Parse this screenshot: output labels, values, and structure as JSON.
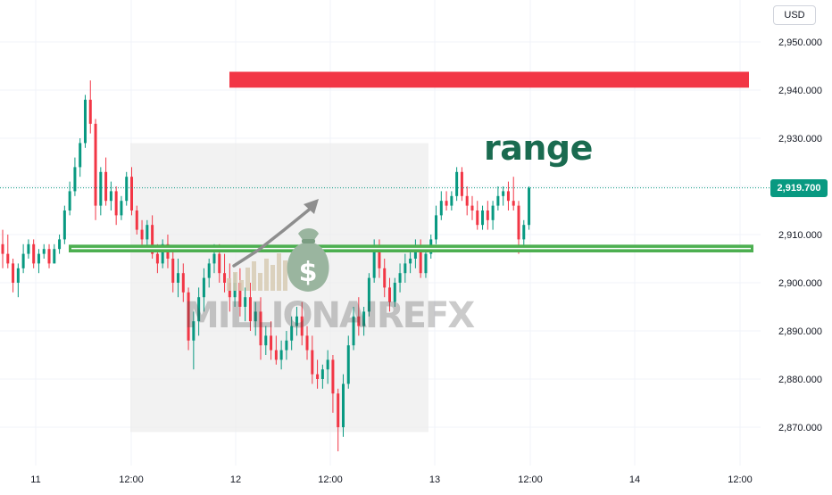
{
  "currency": "USD",
  "current_price_label": "2,919.700",
  "annotation": "range",
  "watermark": "MILLIONAIREFX",
  "colors": {
    "up": "#089981",
    "down": "#f23645",
    "resistance": "#f23645",
    "support": "#4caf50",
    "annotation": "#1a6b50",
    "grid": "#f0f3fa",
    "box": "#ebebeb"
  },
  "icons": [
    "money-bag-icon",
    "trend-arrow-icon"
  ],
  "chart_data": {
    "type": "candlestick",
    "y_ticks": [
      "2,950.000",
      "2,940.000",
      "2,930.000",
      "2,920.000",
      "2,910.000",
      "2,900.000",
      "2,890.000",
      "2,880.000",
      "2,870.000"
    ],
    "x_ticks": [
      "11",
      "12:00",
      "12",
      "12:00",
      "13",
      "12:00",
      "14",
      "12:00"
    ],
    "ylim": [
      2864,
      2954
    ],
    "zones": {
      "resistance_band": [
        2940.5,
        2943.8
      ],
      "support_band": [
        2906.3,
        2907.9
      ],
      "range_box": {
        "price": [
          2869,
          2929
        ],
        "x": [
          "11 09:30",
          "13 00:00"
        ]
      }
    },
    "candles": [
      {
        "o": 2908,
        "h": 2911,
        "l": 2903,
        "c": 2906
      },
      {
        "o": 2906,
        "h": 2910,
        "l": 2903,
        "c": 2904
      },
      {
        "o": 2904,
        "h": 2905,
        "l": 2898,
        "c": 2900
      },
      {
        "o": 2900,
        "h": 2904,
        "l": 2897,
        "c": 2903
      },
      {
        "o": 2903,
        "h": 2908,
        "l": 2902,
        "c": 2906
      },
      {
        "o": 2906,
        "h": 2909,
        "l": 2905,
        "c": 2908
      },
      {
        "o": 2908,
        "h": 2909,
        "l": 2903,
        "c": 2904
      },
      {
        "o": 2904,
        "h": 2907,
        "l": 2902,
        "c": 2906
      },
      {
        "o": 2906,
        "h": 2908,
        "l": 2905,
        "c": 2907
      },
      {
        "o": 2907,
        "h": 2908,
        "l": 2903,
        "c": 2904
      },
      {
        "o": 2904,
        "h": 2908,
        "l": 2904,
        "c": 2907
      },
      {
        "o": 2907,
        "h": 2910,
        "l": 2906,
        "c": 2909
      },
      {
        "o": 2909,
        "h": 2916,
        "l": 2908,
        "c": 2915
      },
      {
        "o": 2915,
        "h": 2921,
        "l": 2914,
        "c": 2919
      },
      {
        "o": 2919,
        "h": 2926,
        "l": 2918,
        "c": 2924
      },
      {
        "o": 2924,
        "h": 2930,
        "l": 2922,
        "c": 2929
      },
      {
        "o": 2929,
        "h": 2939,
        "l": 2928,
        "c": 2938
      },
      {
        "o": 2938,
        "h": 2942,
        "l": 2931,
        "c": 2933
      },
      {
        "o": 2933,
        "h": 2934,
        "l": 2913,
        "c": 2916
      },
      {
        "o": 2916,
        "h": 2924,
        "l": 2914,
        "c": 2923
      },
      {
        "o": 2923,
        "h": 2926,
        "l": 2916,
        "c": 2917
      },
      {
        "o": 2917,
        "h": 2921,
        "l": 2915,
        "c": 2919
      },
      {
        "o": 2919,
        "h": 2920,
        "l": 2912,
        "c": 2914
      },
      {
        "o": 2914,
        "h": 2918,
        "l": 2913,
        "c": 2917
      },
      {
        "o": 2917,
        "h": 2923,
        "l": 2916,
        "c": 2922
      },
      {
        "o": 2922,
        "h": 2924,
        "l": 2914,
        "c": 2915
      },
      {
        "o": 2915,
        "h": 2916,
        "l": 2910,
        "c": 2911
      },
      {
        "o": 2911,
        "h": 2913,
        "l": 2907,
        "c": 2909
      },
      {
        "o": 2909,
        "h": 2913,
        "l": 2907,
        "c": 2912
      },
      {
        "o": 2912,
        "h": 2914,
        "l": 2905,
        "c": 2906
      },
      {
        "o": 2906,
        "h": 2908,
        "l": 2902,
        "c": 2904
      },
      {
        "o": 2904,
        "h": 2909,
        "l": 2903,
        "c": 2908
      },
      {
        "o": 2908,
        "h": 2910,
        "l": 2903,
        "c": 2905
      },
      {
        "o": 2905,
        "h": 2907,
        "l": 2898,
        "c": 2900
      },
      {
        "o": 2900,
        "h": 2905,
        "l": 2897,
        "c": 2902
      },
      {
        "o": 2902,
        "h": 2904,
        "l": 2896,
        "c": 2898
      },
      {
        "o": 2898,
        "h": 2899,
        "l": 2886,
        "c": 2888
      },
      {
        "o": 2888,
        "h": 2894,
        "l": 2882,
        "c": 2892
      },
      {
        "o": 2892,
        "h": 2899,
        "l": 2889,
        "c": 2897
      },
      {
        "o": 2897,
        "h": 2903,
        "l": 2894,
        "c": 2901
      },
      {
        "o": 2901,
        "h": 2905,
        "l": 2899,
        "c": 2904
      },
      {
        "o": 2904,
        "h": 2908,
        "l": 2902,
        "c": 2906
      },
      {
        "o": 2906,
        "h": 2908,
        "l": 2900,
        "c": 2902
      },
      {
        "o": 2902,
        "h": 2906,
        "l": 2898,
        "c": 2900
      },
      {
        "o": 2900,
        "h": 2904,
        "l": 2894,
        "c": 2897
      },
      {
        "o": 2897,
        "h": 2902,
        "l": 2895,
        "c": 2900
      },
      {
        "o": 2900,
        "h": 2903,
        "l": 2893,
        "c": 2895
      },
      {
        "o": 2895,
        "h": 2899,
        "l": 2892,
        "c": 2897
      },
      {
        "o": 2897,
        "h": 2900,
        "l": 2890,
        "c": 2892
      },
      {
        "o": 2892,
        "h": 2896,
        "l": 2889,
        "c": 2894
      },
      {
        "o": 2894,
        "h": 2897,
        "l": 2884,
        "c": 2887
      },
      {
        "o": 2887,
        "h": 2891,
        "l": 2885,
        "c": 2889
      },
      {
        "o": 2889,
        "h": 2892,
        "l": 2884,
        "c": 2886
      },
      {
        "o": 2886,
        "h": 2889,
        "l": 2883,
        "c": 2884
      },
      {
        "o": 2884,
        "h": 2888,
        "l": 2882,
        "c": 2886
      },
      {
        "o": 2886,
        "h": 2890,
        "l": 2884,
        "c": 2888
      },
      {
        "o": 2888,
        "h": 2893,
        "l": 2886,
        "c": 2891
      },
      {
        "o": 2891,
        "h": 2895,
        "l": 2889,
        "c": 2893
      },
      {
        "o": 2893,
        "h": 2896,
        "l": 2887,
        "c": 2889
      },
      {
        "o": 2889,
        "h": 2891,
        "l": 2884,
        "c": 2886
      },
      {
        "o": 2886,
        "h": 2889,
        "l": 2879,
        "c": 2881
      },
      {
        "o": 2881,
        "h": 2884,
        "l": 2878,
        "c": 2880
      },
      {
        "o": 2880,
        "h": 2883,
        "l": 2878,
        "c": 2882
      },
      {
        "o": 2882,
        "h": 2886,
        "l": 2879,
        "c": 2884
      },
      {
        "o": 2884,
        "h": 2885,
        "l": 2873,
        "c": 2877
      },
      {
        "o": 2877,
        "h": 2878,
        "l": 2865,
        "c": 2870
      },
      {
        "o": 2870,
        "h": 2881,
        "l": 2868,
        "c": 2879
      },
      {
        "o": 2879,
        "h": 2889,
        "l": 2878,
        "c": 2887
      },
      {
        "o": 2887,
        "h": 2895,
        "l": 2886,
        "c": 2893
      },
      {
        "o": 2893,
        "h": 2897,
        "l": 2889,
        "c": 2891
      },
      {
        "o": 2891,
        "h": 2895,
        "l": 2889,
        "c": 2894
      },
      {
        "o": 2894,
        "h": 2902,
        "l": 2893,
        "c": 2901
      },
      {
        "o": 2901,
        "h": 2909,
        "l": 2900,
        "c": 2907
      },
      {
        "o": 2907,
        "h": 2909,
        "l": 2901,
        "c": 2903
      },
      {
        "o": 2903,
        "h": 2905,
        "l": 2897,
        "c": 2899
      },
      {
        "o": 2899,
        "h": 2901,
        "l": 2894,
        "c": 2896
      },
      {
        "o": 2896,
        "h": 2901,
        "l": 2895,
        "c": 2900
      },
      {
        "o": 2900,
        "h": 2904,
        "l": 2898,
        "c": 2902
      },
      {
        "o": 2902,
        "h": 2906,
        "l": 2900,
        "c": 2904
      },
      {
        "o": 2904,
        "h": 2907,
        "l": 2902,
        "c": 2905
      },
      {
        "o": 2905,
        "h": 2909,
        "l": 2903,
        "c": 2907
      },
      {
        "o": 2907,
        "h": 2909,
        "l": 2901,
        "c": 2902
      },
      {
        "o": 2902,
        "h": 2907,
        "l": 2901,
        "c": 2906
      },
      {
        "o": 2906,
        "h": 2910,
        "l": 2905,
        "c": 2909
      },
      {
        "o": 2909,
        "h": 2916,
        "l": 2908,
        "c": 2914
      },
      {
        "o": 2914,
        "h": 2919,
        "l": 2913,
        "c": 2917
      },
      {
        "o": 2917,
        "h": 2919,
        "l": 2915,
        "c": 2916
      },
      {
        "o": 2916,
        "h": 2919,
        "l": 2915,
        "c": 2918
      },
      {
        "o": 2918,
        "h": 2924,
        "l": 2917,
        "c": 2923
      },
      {
        "o": 2923,
        "h": 2924,
        "l": 2917,
        "c": 2918
      },
      {
        "o": 2918,
        "h": 2920,
        "l": 2914,
        "c": 2916
      },
      {
        "o": 2916,
        "h": 2918,
        "l": 2913,
        "c": 2915
      },
      {
        "o": 2915,
        "h": 2917,
        "l": 2911,
        "c": 2912
      },
      {
        "o": 2912,
        "h": 2916,
        "l": 2911,
        "c": 2915
      },
      {
        "o": 2915,
        "h": 2917,
        "l": 2911,
        "c": 2913
      },
      {
        "o": 2913,
        "h": 2917,
        "l": 2911,
        "c": 2916
      },
      {
        "o": 2916,
        "h": 2920,
        "l": 2915,
        "c": 2918
      },
      {
        "o": 2918,
        "h": 2920,
        "l": 2916,
        "c": 2919
      },
      {
        "o": 2919,
        "h": 2921,
        "l": 2915,
        "c": 2917
      },
      {
        "o": 2917,
        "h": 2922,
        "l": 2915,
        "c": 2916
      },
      {
        "o": 2916,
        "h": 2917,
        "l": 2906,
        "c": 2909
      },
      {
        "o": 2909,
        "h": 2913,
        "l": 2907,
        "c": 2912
      },
      {
        "o": 2912,
        "h": 2920,
        "l": 2911,
        "c": 2919.7
      }
    ]
  }
}
